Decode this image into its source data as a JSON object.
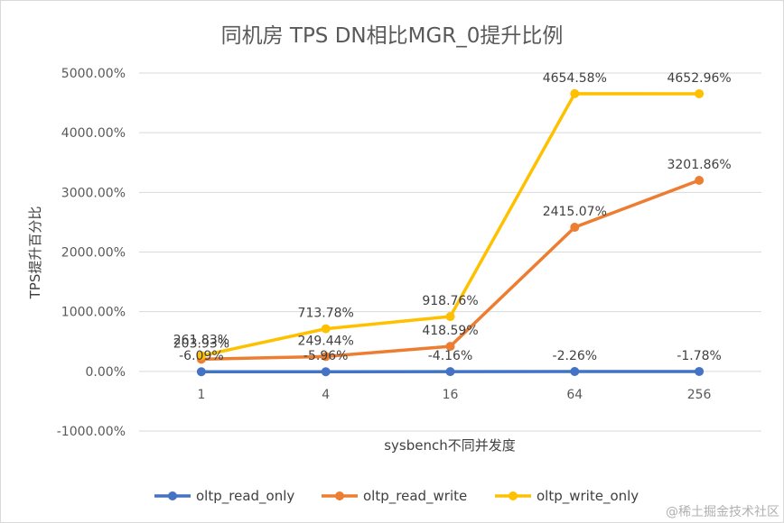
{
  "chart_data": {
    "type": "line",
    "title": "同机房 TPS DN相比MGR_0提升比例",
    "xlabel": "sysbench不同并发度",
    "ylabel": "TPS提升百分比",
    "categories": [
      "1",
      "4",
      "16",
      "64",
      "256"
    ],
    "ylim": [
      -1000,
      5000
    ],
    "yticks": [
      "-1000.00%",
      "0.00%",
      "1000.00%",
      "2000.00%",
      "3000.00%",
      "4000.00%",
      "5000.00%"
    ],
    "grid": true,
    "legend_position": "bottom",
    "series": [
      {
        "name": "oltp_read_only",
        "color": "#4472C4",
        "values": [
          -6.09,
          -5.96,
          -4.16,
          -2.26,
          -1.78
        ],
        "labels": [
          "-6.09%",
          "-5.96%",
          "-4.16%",
          "-2.26%",
          "-1.78%"
        ]
      },
      {
        "name": "oltp_read_write",
        "color": "#ED7D31",
        "values": [
          203.93,
          249.44,
          418.59,
          2415.07,
          3201.86
        ],
        "labels": [
          "203.93%",
          "249.44%",
          "418.59%",
          "2415.07%",
          "3201.86%"
        ]
      },
      {
        "name": "oltp_write_only",
        "color": "#FFC000",
        "values": [
          261.83,
          713.78,
          918.76,
          4654.58,
          4652.96
        ],
        "labels": [
          "261.83%",
          "713.78%",
          "918.76%",
          "4654.58%",
          "4652.96%"
        ]
      }
    ]
  },
  "watermark": "@稀土掘金技术社区"
}
